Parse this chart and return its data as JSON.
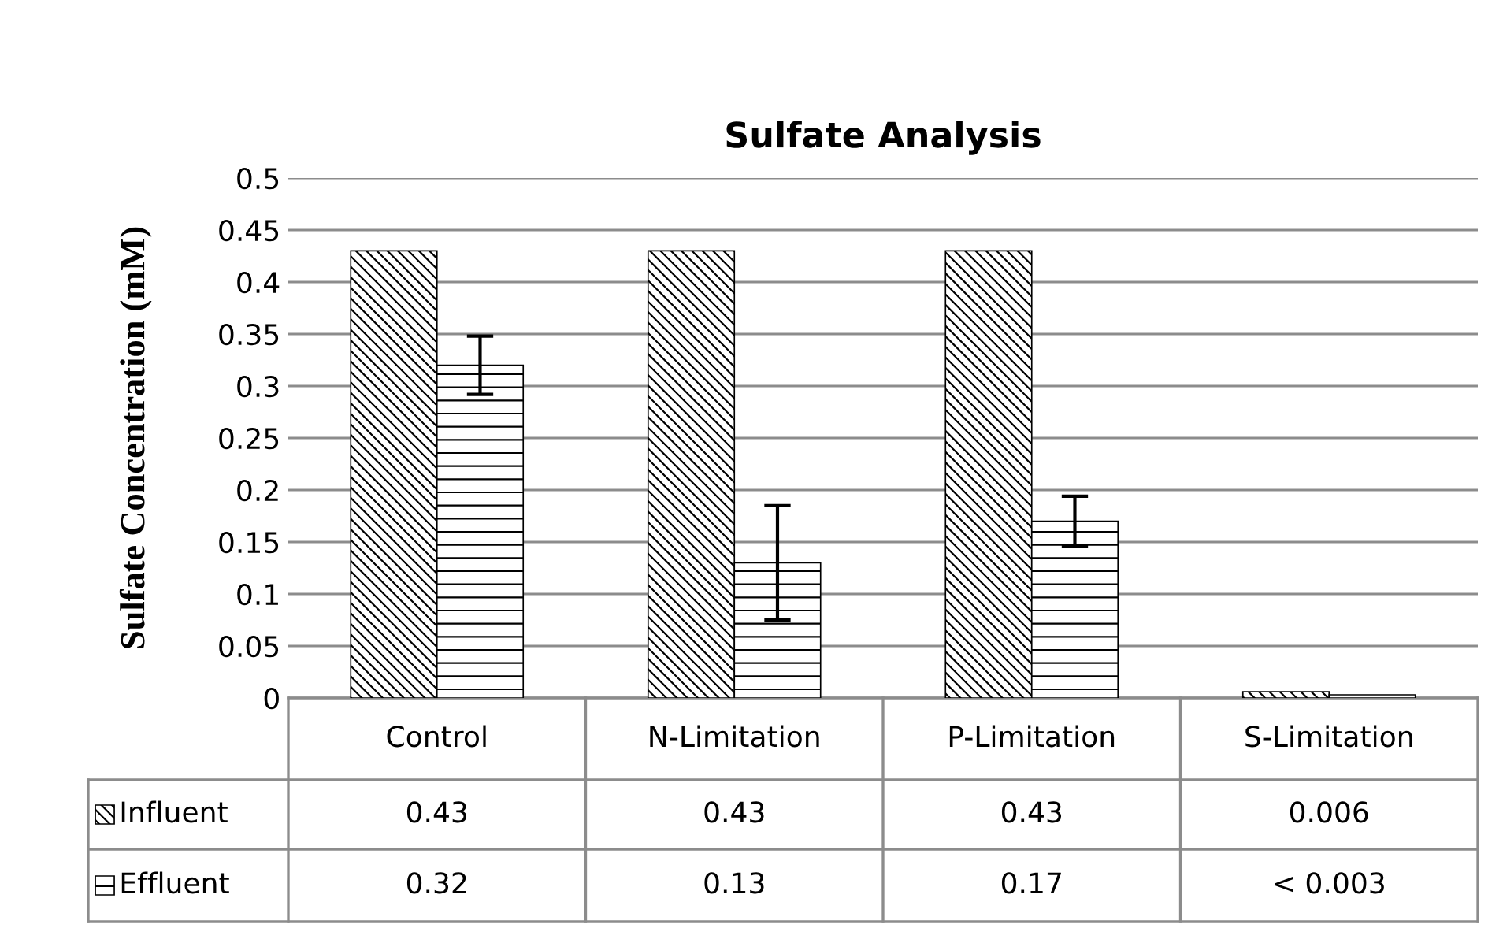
{
  "chart_data": {
    "type": "bar",
    "title": "Sulfate Analysis",
    "ylabel": "Sulfate Concentration (mM)",
    "categories": [
      "Control",
      "N-Limitation",
      "P-Limitation",
      "S-Limitation"
    ],
    "series": [
      {
        "name": "Influent",
        "color": "#000000",
        "values": [
          0.43,
          0.43,
          0.43,
          0.006
        ],
        "value_labels": [
          "0.43",
          "0.43",
          "0.43",
          "0.006"
        ]
      },
      {
        "name": "Effluent",
        "color": "#000000",
        "values": [
          0.32,
          0.13,
          0.17,
          0.003
        ],
        "errors": [
          0.028,
          0.055,
          0.024,
          null
        ],
        "value_labels": [
          "0.32",
          "0.13",
          "0.17",
          "< 0.003"
        ]
      }
    ],
    "ylim": [
      0,
      0.5
    ],
    "yticks": [
      0,
      0.05,
      0.1,
      0.15,
      0.2,
      0.25,
      0.3,
      0.35,
      0.4,
      0.45,
      0.5
    ],
    "grid": "y",
    "legend": "bottom"
  }
}
